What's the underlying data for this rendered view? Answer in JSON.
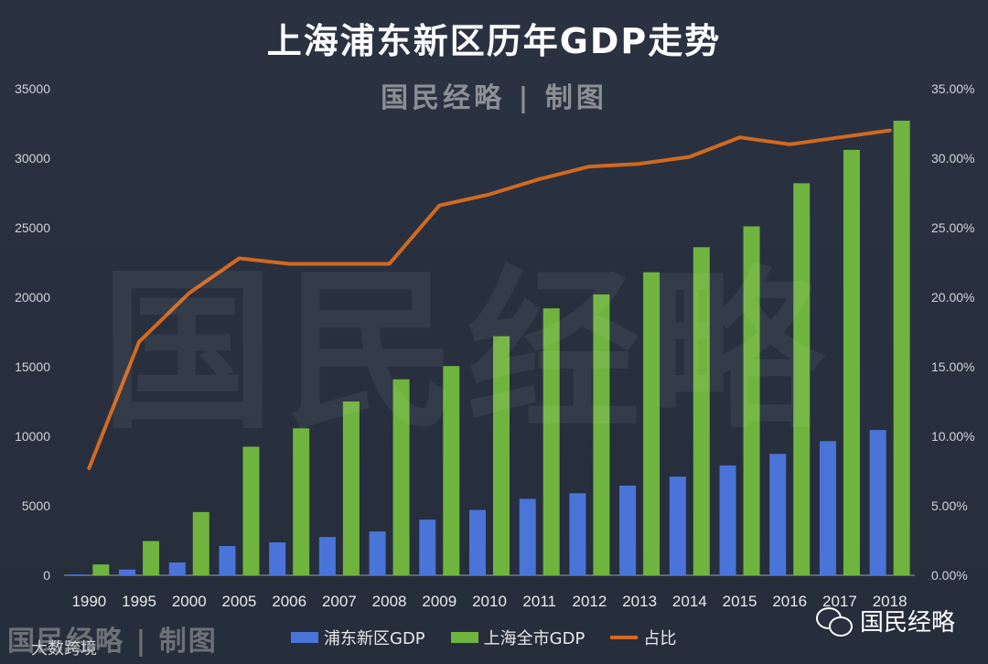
{
  "chart_data": {
    "type": "bar+line",
    "title": "上海浦东新区历年GDP走势",
    "subtitle": "国民经略 | 制图",
    "categories": [
      "1990",
      "1995",
      "2000",
      "2005",
      "2006",
      "2007",
      "2008",
      "2009",
      "2010",
      "2011",
      "2012",
      "2013",
      "2014",
      "2015",
      "2016",
      "2017",
      "2018"
    ],
    "series": [
      {
        "name": "浦东新区GDP",
        "type": "bar",
        "axis": "left",
        "color": "#4a74d8",
        "values": [
          60,
          415,
          920,
          2108,
          2365,
          2750,
          3150,
          4000,
          4700,
          5500,
          5900,
          6450,
          7100,
          7900,
          8730,
          9650,
          10450
        ]
      },
      {
        "name": "上海全市GDP",
        "type": "bar",
        "axis": "left",
        "color": "#6fb43e",
        "values": [
          780,
          2460,
          4550,
          9250,
          10570,
          12500,
          14100,
          15050,
          17200,
          19200,
          20200,
          21800,
          23600,
          25100,
          28200,
          30600,
          32700
        ]
      },
      {
        "name": "占比",
        "type": "line",
        "axis": "right",
        "color": "#d2691e",
        "values": [
          7.7,
          16.8,
          20.3,
          22.8,
          22.4,
          22.4,
          22.4,
          26.6,
          27.4,
          28.5,
          29.4,
          29.6,
          30.1,
          31.5,
          31.0,
          31.5,
          32.0
        ]
      }
    ],
    "y_left": {
      "min": 0,
      "max": 35000,
      "ticks": [
        "0",
        "5000",
        "10000",
        "15000",
        "20000",
        "25000",
        "30000",
        "35000"
      ]
    },
    "y_right": {
      "min": 0,
      "max": 35,
      "ticks": [
        "0.00%",
        "5.00%",
        "10.00%",
        "15.00%",
        "20.00%",
        "25.00%",
        "30.00%",
        "35.00%"
      ]
    },
    "grid": false,
    "legend_position": "bottom"
  },
  "watermark": "国民经略",
  "footer": {
    "credit": "国民经略 | 制图",
    "source": "大数跨境"
  },
  "brand": {
    "name": "国民经略",
    "icon": "wechat-icon"
  }
}
